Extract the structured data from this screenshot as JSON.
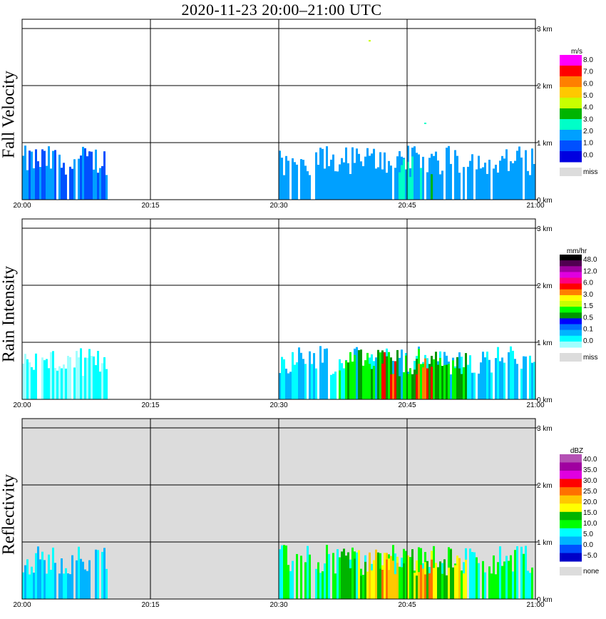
{
  "title": "2020-11-23   20:00–21:00 UTC",
  "x_tick_labels": [
    "20:00",
    "20:15",
    "20:30",
    "20:45",
    "21:00"
  ],
  "y_tick_labels": [
    "0 km",
    "1 km",
    "2 km",
    "3 km"
  ],
  "panels": [
    {
      "label": "Fall Velocity",
      "background": "#ffffff",
      "legend": {
        "unit": "m/s",
        "labels": [
          "8.0",
          "7.0",
          "6.0",
          "5.0",
          "4.0",
          "3.0",
          "2.0",
          "1.0",
          "0.0"
        ],
        "colors": [
          "#ff00ff",
          "#ff0000",
          "#ff8000",
          "#ffc800",
          "#c8ff00",
          "#00b400",
          "#00ffc8",
          "#00a0ff",
          "#0050ff",
          "#0000e0"
        ],
        "missing_label": "miss",
        "missing_color": "#dcdcdc"
      }
    },
    {
      "label": "Rain Intensity",
      "background": "#ffffff",
      "legend": {
        "unit": "mm/hr",
        "labels": [
          "48.0",
          "12.0",
          "6.0",
          "3.0",
          "1.5",
          "0.5",
          "0.1",
          "0.0"
        ],
        "colors": [
          "#000000",
          "#500050",
          "#a000a0",
          "#e000e0",
          "#ff0080",
          "#ff0000",
          "#ff8000",
          "#ffff00",
          "#c8ff00",
          "#00ff00",
          "#009600",
          "#0000ff",
          "#0070ff",
          "#00b4ff",
          "#00ffff",
          "#a0ffff"
        ],
        "missing_label": "miss",
        "missing_color": "#dcdcdc"
      }
    },
    {
      "label": "Reflectivity",
      "background": "#dcdcdc",
      "legend": {
        "unit": "dBZ",
        "labels": [
          "40.0",
          "35.0",
          "30.0",
          "25.0",
          "20.0",
          "15.0",
          "10.0",
          "5.0",
          "0.0",
          "−5.0"
        ],
        "colors": [
          "#b450b4",
          "#a000a0",
          "#e000e0",
          "#ff0000",
          "#ff7000",
          "#ffc800",
          "#ffff00",
          "#00b400",
          "#00ff00",
          "#00ffff",
          "#00b4ff",
          "#0050ff",
          "#0000c8"
        ],
        "missing_label": "none",
        "missing_color": "#dcdcdc"
      }
    }
  ],
  "chart_data": [
    {
      "type": "heatmap",
      "title": "2020-11-23   20:00–21:00 UTC",
      "ylabel": "Fall Velocity",
      "colorbar_unit": "m/s",
      "x_range": [
        "20:00",
        "21:00"
      ],
      "y_range_km": [
        0,
        3.5
      ],
      "features": [
        {
          "t_start": 0.0,
          "t_end": 10.0,
          "z_top_km": 0.95,
          "value": 1.0,
          "note": "scattered echoes"
        },
        {
          "t_start": 30.0,
          "t_end": 60.0,
          "z_top_km": 0.95,
          "value": 1.5
        },
        {
          "t_start": 44.0,
          "t_end": 48.0,
          "z_top_km": 0.85,
          "value": 2.5
        },
        {
          "t_start": 47.0,
          "t_end": 47.0,
          "z_top_km": 1.75,
          "value": 2.5
        },
        {
          "t_start": 40.5,
          "t_end": 40.5,
          "z_top_km": 3.0,
          "value": 4.0
        }
      ]
    },
    {
      "type": "heatmap",
      "ylabel": "Rain Intensity",
      "colorbar_unit": "mm/hr",
      "x_range": [
        "20:00",
        "21:00"
      ],
      "y_range_km": [
        0,
        3.5
      ],
      "features": [
        {
          "t_start": 0.0,
          "t_end": 10.0,
          "z_top_km": 0.9,
          "value": 0.1
        },
        {
          "t_start": 30.0,
          "t_end": 60.0,
          "z_top_km": 0.95,
          "value": 0.3
        },
        {
          "t_start": 37.0,
          "t_end": 52.0,
          "z_top_km": 0.9,
          "value": 1.5
        },
        {
          "t_start": 42.0,
          "t_end": 44.0,
          "z_top_km": 0.85,
          "value": 6.0
        },
        {
          "t_start": 46.0,
          "t_end": 48.0,
          "z_top_km": 0.75,
          "value": 6.0
        }
      ]
    },
    {
      "type": "heatmap",
      "ylabel": "Reflectivity",
      "colorbar_unit": "dBZ",
      "x_range": [
        "20:00",
        "21:00"
      ],
      "y_range_km": [
        0,
        3.5
      ],
      "features": [
        {
          "t_start": 0.0,
          "t_end": 10.0,
          "z_top_km": 0.95,
          "value": 5.0
        },
        {
          "t_start": 30.0,
          "t_end": 60.0,
          "z_top_km": 0.95,
          "value": 10.0
        },
        {
          "t_start": 37.0,
          "t_end": 52.0,
          "z_top_km": 0.9,
          "value": 20.0
        },
        {
          "t_start": 42.0,
          "t_end": 44.0,
          "z_top_km": 0.85,
          "value": 25.0
        },
        {
          "t_start": 46.0,
          "t_end": 48.0,
          "z_top_km": 0.75,
          "value": 25.0
        }
      ]
    }
  ]
}
